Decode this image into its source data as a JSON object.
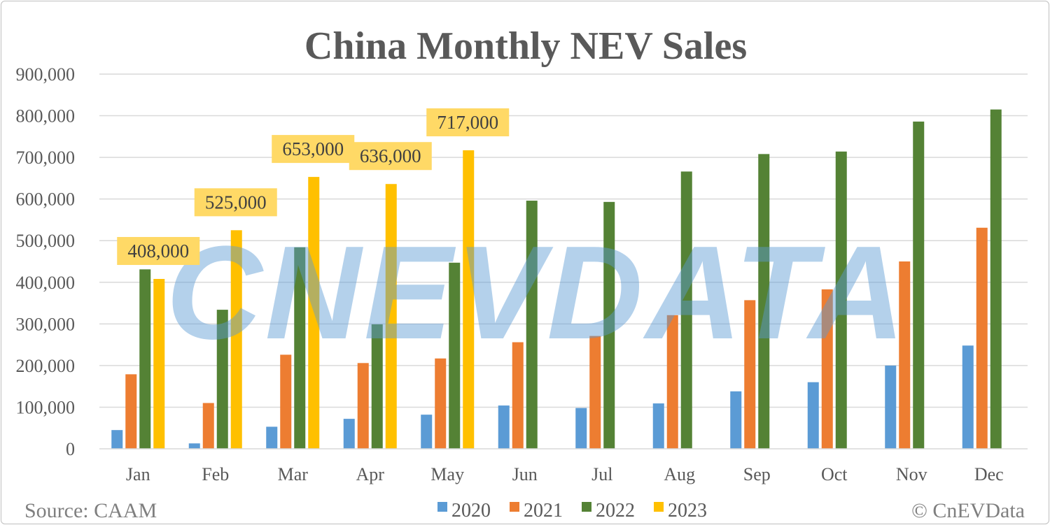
{
  "chart_data": {
    "type": "bar",
    "title": "China Monthly NEV Sales",
    "xlabel": "",
    "ylabel": "",
    "ylim": [
      0,
      900000
    ],
    "yticks": [
      0,
      100000,
      200000,
      300000,
      400000,
      500000,
      600000,
      700000,
      800000,
      900000
    ],
    "ytick_labels": [
      "0",
      "100,000",
      "200,000",
      "300,000",
      "400,000",
      "500,000",
      "600,000",
      "700,000",
      "800,000",
      "900,000"
    ],
    "grid": true,
    "legend_position": "bottom",
    "categories": [
      "Jan",
      "Feb",
      "Mar",
      "Apr",
      "May",
      "Jun",
      "Jul",
      "Aug",
      "Sep",
      "Oct",
      "Nov",
      "Dec"
    ],
    "series": [
      {
        "name": "2020",
        "color": "#5b9bd5",
        "values": [
          45000,
          13000,
          53000,
          72000,
          82000,
          104000,
          98000,
          109000,
          138000,
          160000,
          200000,
          248000
        ]
      },
      {
        "name": "2021",
        "color": "#ed7d31",
        "values": [
          179000,
          110000,
          226000,
          206000,
          217000,
          256000,
          271000,
          321000,
          357000,
          383000,
          450000,
          531000
        ]
      },
      {
        "name": "2022",
        "color": "#548235",
        "values": [
          431000,
          334000,
          484000,
          299000,
          447000,
          596000,
          593000,
          666000,
          708000,
          714000,
          786000,
          815000
        ]
      },
      {
        "name": "2023",
        "color": "#ffc000",
        "values": [
          408000,
          525000,
          653000,
          636000,
          717000,
          null,
          null,
          null,
          null,
          null,
          null,
          null
        ]
      }
    ],
    "data_labels": [
      "408,000",
      "525,000",
      "653,000",
      "636,000",
      "717,000"
    ],
    "data_label_bg": "#ffd966",
    "source": "Source: CAAM",
    "copyright": "© CnEVData",
    "watermark": "CNEVDATA"
  }
}
